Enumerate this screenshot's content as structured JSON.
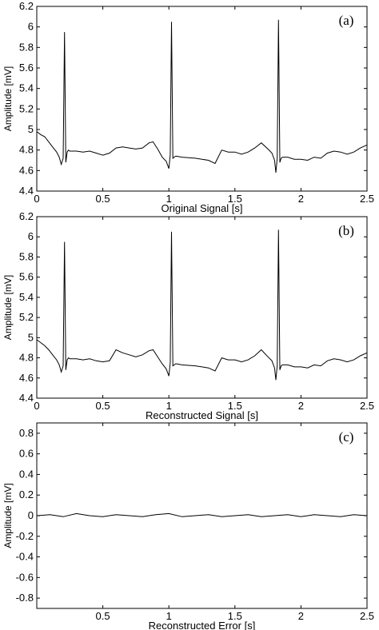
{
  "chart_data": [
    {
      "type": "line",
      "panel_label": "(a)",
      "xlabel": "Original Signal [s]",
      "ylabel": "Amplitude [mV]",
      "xlim": [
        0,
        2.5
      ],
      "ylim": [
        4.4,
        6.2
      ],
      "xticks": [
        "0",
        "0.5",
        "1",
        "1.5",
        "2",
        "2.5"
      ],
      "yticks": [
        "4.4",
        "4.6",
        "4.8",
        "5",
        "5.2",
        "5.4",
        "5.6",
        "5.8",
        "6",
        "6.2"
      ],
      "grid": false,
      "series": [
        {
          "x": [
            0,
            0.03,
            0.06,
            0.09,
            0.12,
            0.15,
            0.17,
            0.185,
            0.2,
            0.21,
            0.22,
            0.23,
            0.24,
            0.25,
            0.3,
            0.35,
            0.4,
            0.45,
            0.5,
            0.55,
            0.6,
            0.65,
            0.7,
            0.75,
            0.8,
            0.85,
            0.88,
            0.9,
            0.92,
            0.95,
            0.98,
            1.0,
            1.01,
            1.02,
            1.03,
            1.04,
            1.05,
            1.06,
            1.1,
            1.2,
            1.3,
            1.35,
            1.4,
            1.45,
            1.5,
            1.55,
            1.6,
            1.65,
            1.7,
            1.75,
            1.78,
            1.8,
            1.81,
            1.82,
            1.83,
            1.84,
            1.85,
            1.86,
            1.9,
            1.95,
            2.0,
            2.05,
            2.1,
            2.15,
            2.2,
            2.25,
            2.3,
            2.35,
            2.4,
            2.45,
            2.5
          ],
          "y": [
            4.98,
            4.95,
            4.93,
            4.88,
            4.83,
            4.78,
            4.73,
            4.66,
            4.72,
            5.95,
            4.68,
            4.78,
            4.8,
            4.79,
            4.79,
            4.78,
            4.79,
            4.77,
            4.75,
            4.77,
            4.82,
            4.83,
            4.82,
            4.81,
            4.82,
            4.87,
            4.88,
            4.84,
            4.8,
            4.73,
            4.69,
            4.62,
            4.75,
            6.05,
            4.72,
            4.73,
            4.74,
            4.74,
            4.73,
            4.72,
            4.7,
            4.67,
            4.8,
            4.78,
            4.78,
            4.76,
            4.78,
            4.82,
            4.87,
            4.81,
            4.77,
            4.7,
            4.58,
            4.72,
            6.07,
            4.68,
            4.72,
            4.73,
            4.73,
            4.71,
            4.71,
            4.7,
            4.73,
            4.72,
            4.77,
            4.79,
            4.78,
            4.76,
            4.78,
            4.82,
            4.85
          ]
        }
      ]
    },
    {
      "type": "line",
      "panel_label": "(b)",
      "xlabel": "Reconstructed Signal [s]",
      "ylabel": "Amplitude [mV]",
      "xlim": [
        0,
        2.5
      ],
      "ylim": [
        4.4,
        6.2
      ],
      "xticks": [
        "0",
        "0.5",
        "1",
        "1.5",
        "2",
        "2.5"
      ],
      "yticks": [
        "4.4",
        "4.6",
        "4.8",
        "5",
        "5.2",
        "5.4",
        "5.6",
        "5.8",
        "6",
        "6.2"
      ],
      "grid": false,
      "series": [
        {
          "x": [
            0,
            0.03,
            0.06,
            0.09,
            0.12,
            0.15,
            0.17,
            0.185,
            0.2,
            0.21,
            0.22,
            0.23,
            0.24,
            0.25,
            0.3,
            0.35,
            0.4,
            0.45,
            0.5,
            0.55,
            0.6,
            0.65,
            0.7,
            0.75,
            0.8,
            0.85,
            0.88,
            0.9,
            0.92,
            0.95,
            0.98,
            1.0,
            1.01,
            1.02,
            1.03,
            1.04,
            1.05,
            1.06,
            1.1,
            1.2,
            1.3,
            1.35,
            1.4,
            1.45,
            1.5,
            1.55,
            1.6,
            1.65,
            1.7,
            1.75,
            1.78,
            1.8,
            1.81,
            1.82,
            1.83,
            1.84,
            1.85,
            1.86,
            1.9,
            1.95,
            2.0,
            2.05,
            2.1,
            2.15,
            2.2,
            2.25,
            2.3,
            2.35,
            2.4,
            2.45,
            2.5
          ],
          "y": [
            4.98,
            4.95,
            4.92,
            4.88,
            4.83,
            4.78,
            4.73,
            4.66,
            4.72,
            5.95,
            4.68,
            4.78,
            4.8,
            4.79,
            4.79,
            4.78,
            4.79,
            4.77,
            4.76,
            4.77,
            4.88,
            4.85,
            4.83,
            4.81,
            4.83,
            4.87,
            4.88,
            4.84,
            4.8,
            4.74,
            4.69,
            4.62,
            4.75,
            6.05,
            4.72,
            4.73,
            4.74,
            4.74,
            4.73,
            4.72,
            4.7,
            4.67,
            4.8,
            4.78,
            4.78,
            4.76,
            4.78,
            4.82,
            4.88,
            4.81,
            4.77,
            4.7,
            4.58,
            4.72,
            6.07,
            4.68,
            4.72,
            4.73,
            4.73,
            4.71,
            4.71,
            4.7,
            4.73,
            4.72,
            4.77,
            4.79,
            4.78,
            4.76,
            4.78,
            4.82,
            4.85
          ]
        }
      ]
    },
    {
      "type": "line",
      "panel_label": "(c)",
      "xlabel": "Reconstructed Error [s]",
      "ylabel": "Amplitude [mV]",
      "xlim": [
        0,
        2.5
      ],
      "ylim": [
        -0.9,
        0.9
      ],
      "xticks": [
        "0.5",
        "1",
        "1.5",
        "2",
        "2.5"
      ],
      "yticks": [
        "-0.8",
        "-0.6",
        "-0.4",
        "-0.2",
        "0",
        "0.2",
        "0.4",
        "0.6",
        "0.8"
      ],
      "grid": false,
      "series": [
        {
          "x": [
            0,
            0.1,
            0.2,
            0.3,
            0.4,
            0.5,
            0.6,
            0.7,
            0.8,
            0.9,
            1.0,
            1.1,
            1.2,
            1.3,
            1.4,
            1.5,
            1.6,
            1.7,
            1.8,
            1.9,
            2.0,
            2.1,
            2.2,
            2.3,
            2.4,
            2.5
          ],
          "y": [
            0.0,
            0.01,
            -0.01,
            0.02,
            0.0,
            -0.01,
            0.01,
            0.0,
            -0.01,
            0.01,
            0.02,
            -0.01,
            0.0,
            0.01,
            -0.01,
            0.0,
            0.01,
            -0.01,
            0.0,
            0.01,
            -0.01,
            0.01,
            0.0,
            -0.01,
            0.01,
            0.0
          ]
        }
      ]
    }
  ]
}
